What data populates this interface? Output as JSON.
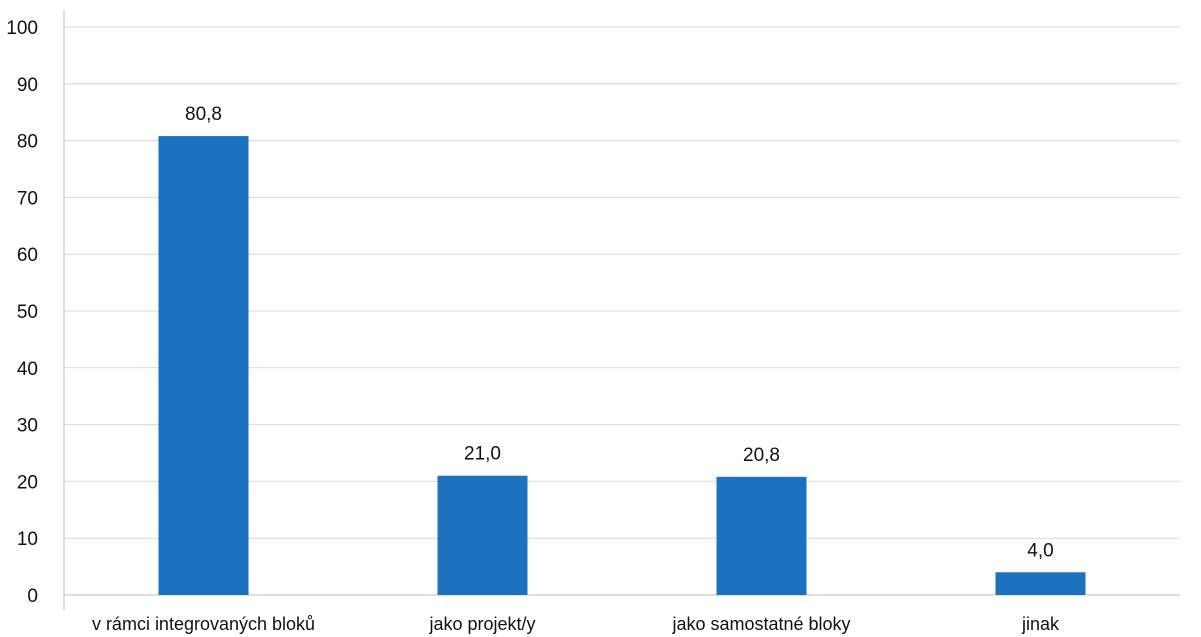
{
  "chart_data": {
    "type": "bar",
    "categories": [
      "v rámci integrovaných bloků",
      "jako projekt/y",
      "jako samostatné bloky",
      "jinak"
    ],
    "values": [
      80.8,
      21.0,
      20.8,
      4.0
    ],
    "value_labels": [
      "80,8",
      "21,0",
      "20,8",
      "4,0"
    ],
    "title": "",
    "xlabel": "",
    "ylabel": "",
    "ylim": [
      0,
      100
    ],
    "yticks": [
      "0",
      "10",
      "20",
      "30",
      "40",
      "50",
      "60",
      "70",
      "80",
      "90",
      "100"
    ],
    "grid": true,
    "legend": "none",
    "bar_color": "#1b72be",
    "grid_color": "#d9d9d9",
    "axis_color": "#bfbfbf"
  }
}
